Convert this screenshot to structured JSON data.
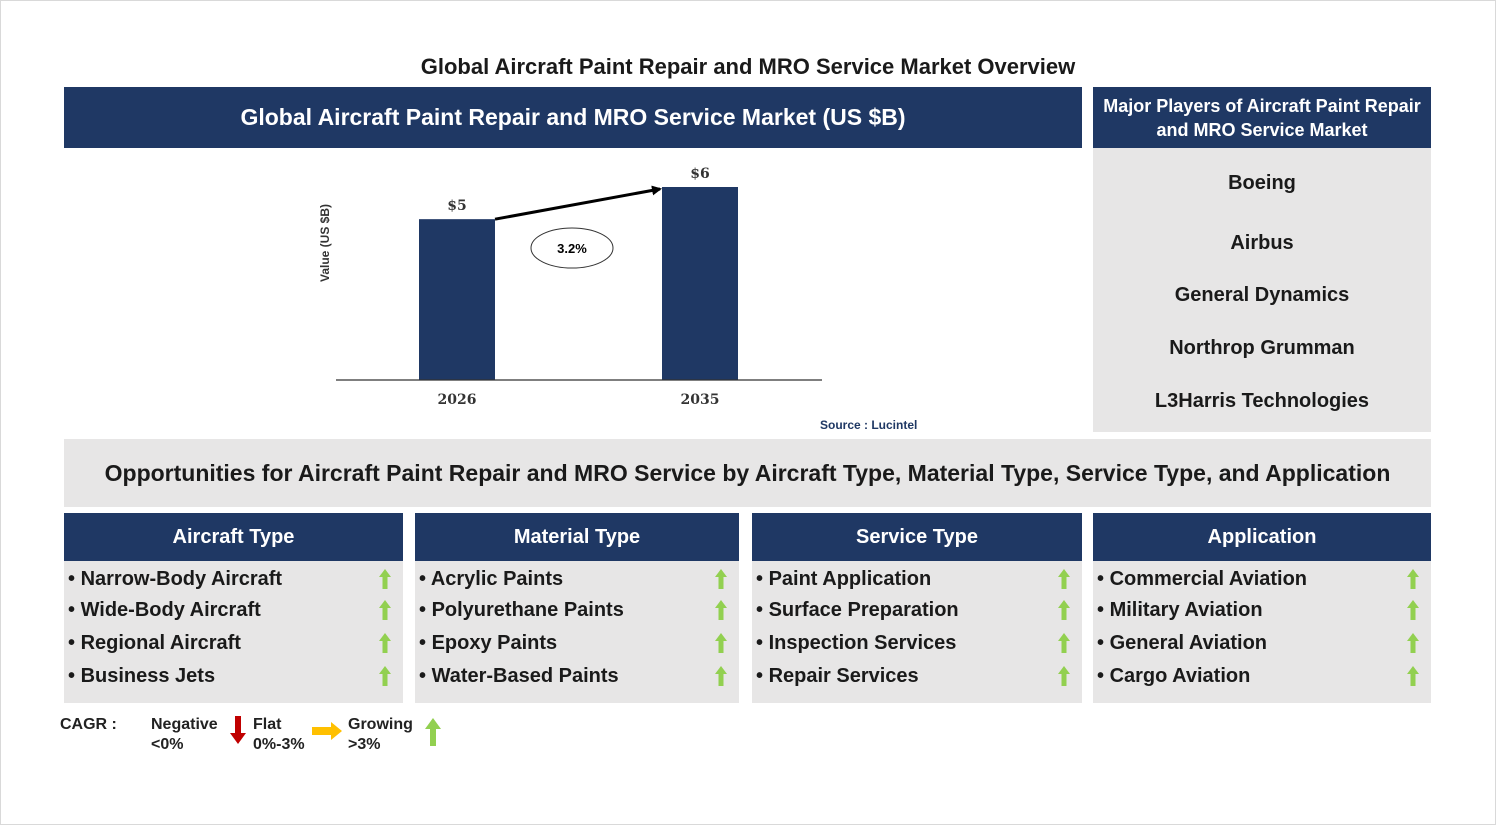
{
  "title": "Global Aircraft Paint Repair and MRO Service Market Overview",
  "chart_header": "Global Aircraft Paint Repair and MRO Service Market (US $B)",
  "chart_data": {
    "type": "bar",
    "categories": [
      "2026",
      "2035"
    ],
    "values": [
      5,
      6
    ],
    "value_labels": [
      "$5",
      "$6"
    ],
    "ylabel": "Value (US $B)",
    "cagr_label": "3.2%",
    "source": "Source : Lucintel",
    "colors": {
      "bar": "#1f3864"
    }
  },
  "players": {
    "header": "Major Players of Aircraft Paint Repair and MRO Service Market",
    "items": [
      "Boeing",
      "Airbus",
      "General Dynamics",
      "Northrop Grumman",
      "L3Harris Technologies"
    ]
  },
  "opportunities_title": "Opportunities for Aircraft Paint Repair and MRO Service by Aircraft Type, Material Type, Service Type, and Application",
  "segments": [
    {
      "title": "Aircraft Type",
      "items": [
        "Narrow-Body Aircraft",
        "Wide-Body Aircraft",
        "Regional Aircraft",
        "Business Jets"
      ]
    },
    {
      "title": "Material Type",
      "items": [
        "Acrylic Paints",
        "Polyurethane Paints",
        "Epoxy Paints",
        "Water-Based Paints"
      ]
    },
    {
      "title": "Service Type",
      "items": [
        "Paint Application",
        "Surface Preparation",
        "Inspection Services",
        "Repair Services"
      ]
    },
    {
      "title": "Application",
      "items": [
        "Commercial Aviation",
        "Military Aviation",
        "General Aviation",
        "Cargo Aviation"
      ]
    }
  ],
  "legend": {
    "label": "CAGR :",
    "negative": [
      "Negative",
      "<0%"
    ],
    "flat": [
      "Flat",
      "0%-3%"
    ],
    "growing": [
      "Growing",
      ">3%"
    ]
  },
  "colors": {
    "navy": "#1f3864",
    "grey": "#e7e6e6",
    "growth": "#92d050",
    "negative": "#c00000",
    "flat": "#ffc000"
  }
}
